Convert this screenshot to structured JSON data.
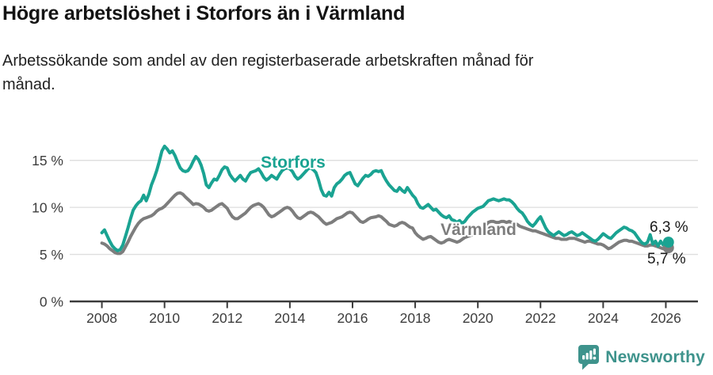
{
  "header": {
    "title": "Högre arbetslöshet i Storfors än i Värmland",
    "subtitle": "Arbetssökande som andel av den registerbaserade arbetskraften månad för månad."
  },
  "footer": {
    "brand": "Newsworthy",
    "logo_icon": "bar-chart-pin-icon"
  },
  "colors": {
    "storfors": "#1aa392",
    "varmland": "#7d7d7d",
    "grid": "#dedede",
    "axis": "#3b3b3b",
    "tick_label": "#3d3d3d",
    "end_label": "#1a1a1a",
    "title": "#141414",
    "brand_teal": "#3e938c",
    "background": "#ffffff"
  },
  "chart_data": {
    "type": "line",
    "title": "Högre arbetslöshet i Storfors än i Värmland",
    "subtitle": "Arbetssökande som andel av den registerbaserade arbetskraften månad för månad.",
    "unit": "%",
    "x_start_year": 2008,
    "x_step_months": 1,
    "xlim": [
      2007.1,
      2027.0
    ],
    "ylim": [
      0,
      18
    ],
    "grid": true,
    "x_ticks": [
      2008,
      2010,
      2012,
      2014,
      2016,
      2018,
      2020,
      2022,
      2024,
      2026
    ],
    "x_tick_labels": [
      "2008",
      "2010",
      "2012",
      "2014",
      "2016",
      "2018",
      "2020",
      "2022",
      "2024",
      "2026"
    ],
    "y_ticks": [
      0,
      5,
      10,
      15
    ],
    "y_tick_labels": [
      "0 %",
      "5 %",
      "10 %",
      "15 %"
    ],
    "legend_position": "inline-labels",
    "series": [
      {
        "name": "Storfors",
        "color": "#1aa392",
        "end_label": "6,3 %",
        "end_value": 6.3,
        "values": [
          7.3,
          7.6,
          7.0,
          6.4,
          5.9,
          5.6,
          5.4,
          5.5,
          6.0,
          6.9,
          7.8,
          8.8,
          9.7,
          10.15,
          10.5,
          10.7,
          11.3,
          10.7,
          11.4,
          12.4,
          13.1,
          13.9,
          14.9,
          16.0,
          16.5,
          16.2,
          15.8,
          16.0,
          15.5,
          14.8,
          14.2,
          13.9,
          13.8,
          13.9,
          14.3,
          14.9,
          15.4,
          15.1,
          14.5,
          13.6,
          12.4,
          12.1,
          12.6,
          13.0,
          12.9,
          13.4,
          14.0,
          14.3,
          14.2,
          13.5,
          13.1,
          12.8,
          13.1,
          13.4,
          13.0,
          12.8,
          13.3,
          13.7,
          13.8,
          13.9,
          14.1,
          13.7,
          13.2,
          12.9,
          13.1,
          13.4,
          13.2,
          13.0,
          13.5,
          13.9,
          14.1,
          14.2,
          14.1,
          13.8,
          13.3,
          13.0,
          13.2,
          13.5,
          13.8,
          14.1,
          14.2,
          14.0,
          13.7,
          12.9,
          11.9,
          11.3,
          11.2,
          11.6,
          11.2,
          12.1,
          12.5,
          12.7,
          13.0,
          13.4,
          13.6,
          13.7,
          13.1,
          12.5,
          12.3,
          12.7,
          13.1,
          13.4,
          13.3,
          13.5,
          13.8,
          13.9,
          13.8,
          13.9,
          13.3,
          12.8,
          12.4,
          12.1,
          11.8,
          11.7,
          12.1,
          11.8,
          11.6,
          12.1,
          11.7,
          11.3,
          11.0,
          10.4,
          10.0,
          9.9,
          10.1,
          10.3,
          10.0,
          9.7,
          9.8,
          9.5,
          9.2,
          9.0,
          8.9,
          9.1,
          8.7,
          8.6,
          8.4,
          8.6,
          8.3,
          8.5,
          8.9,
          9.2,
          9.5,
          9.7,
          9.9,
          10.0,
          10.1,
          10.4,
          10.7,
          10.8,
          10.9,
          10.8,
          10.7,
          10.8,
          10.9,
          10.8,
          10.8,
          10.6,
          10.3,
          9.9,
          9.6,
          9.4,
          9.0,
          8.5,
          8.2,
          8.0,
          8.3,
          8.7,
          9.0,
          8.4,
          7.8,
          7.4,
          7.2,
          7.0,
          7.2,
          7.4,
          7.2,
          7.0,
          7.1,
          7.3,
          7.4,
          7.2,
          7.0,
          7.1,
          7.3,
          7.1,
          6.9,
          6.7,
          6.5,
          6.4,
          6.6,
          6.9,
          7.2,
          7.0,
          6.8,
          6.7,
          7.0,
          7.3,
          7.5,
          7.7,
          7.9,
          7.8,
          7.6,
          7.5,
          7.3,
          6.9,
          6.5,
          6.2,
          6.1,
          6.3,
          7.1,
          6.1,
          6.4,
          5.9,
          6.4,
          6.0,
          6.1,
          6.3
        ]
      },
      {
        "name": "Värmland",
        "color": "#7d7d7d",
        "end_label": "5,7 %",
        "end_value": 5.7,
        "values": [
          6.2,
          6.1,
          5.9,
          5.6,
          5.4,
          5.2,
          5.1,
          5.1,
          5.3,
          5.8,
          6.3,
          6.9,
          7.4,
          7.9,
          8.3,
          8.6,
          8.8,
          8.9,
          9.0,
          9.1,
          9.3,
          9.6,
          9.8,
          9.9,
          10.1,
          10.4,
          10.7,
          11.0,
          11.3,
          11.5,
          11.55,
          11.4,
          11.1,
          10.85,
          10.6,
          10.3,
          10.4,
          10.35,
          10.2,
          10.0,
          9.7,
          9.6,
          9.7,
          9.9,
          10.1,
          10.3,
          10.4,
          10.15,
          9.9,
          9.4,
          9.0,
          8.8,
          8.8,
          9.0,
          9.2,
          9.4,
          9.7,
          10.0,
          10.2,
          10.3,
          10.4,
          10.25,
          10.0,
          9.6,
          9.2,
          9.0,
          9.1,
          9.3,
          9.5,
          9.7,
          9.9,
          10.0,
          9.9,
          9.6,
          9.2,
          8.9,
          8.8,
          9.0,
          9.2,
          9.4,
          9.5,
          9.4,
          9.2,
          9.0,
          8.7,
          8.4,
          8.2,
          8.3,
          8.4,
          8.6,
          8.8,
          8.9,
          9.0,
          9.2,
          9.4,
          9.5,
          9.4,
          9.1,
          8.8,
          8.5,
          8.4,
          8.55,
          8.75,
          8.9,
          8.95,
          9.0,
          9.1,
          9.0,
          8.75,
          8.5,
          8.2,
          8.1,
          8.0,
          8.1,
          8.3,
          8.4,
          8.3,
          8.1,
          7.9,
          7.8,
          7.3,
          7.0,
          6.8,
          6.6,
          6.7,
          6.85,
          6.9,
          6.7,
          6.5,
          6.3,
          6.2,
          6.3,
          6.5,
          6.6,
          6.5,
          6.4,
          6.3,
          6.4,
          6.6,
          6.8,
          6.9,
          7.0,
          7.1,
          7.2,
          7.3,
          7.4,
          7.7,
          8.1,
          8.4,
          8.5,
          8.5,
          8.4,
          8.4,
          8.5,
          8.5,
          8.4,
          8.5,
          8.4,
          8.3,
          8.2,
          8.0,
          7.9,
          7.8,
          7.7,
          7.6,
          7.5,
          7.5,
          7.4,
          7.3,
          7.2,
          7.1,
          7.0,
          6.9,
          6.8,
          6.7,
          6.7,
          6.6,
          6.6,
          6.6,
          6.7,
          6.7,
          6.7,
          6.6,
          6.5,
          6.4,
          6.3,
          6.4,
          6.4,
          6.3,
          6.2,
          6.1,
          6.1,
          6.0,
          5.8,
          5.6,
          5.7,
          5.9,
          6.1,
          6.3,
          6.4,
          6.5,
          6.5,
          6.4,
          6.4,
          6.3,
          6.2,
          6.1,
          6.0,
          5.9,
          5.9,
          6.0,
          6.0,
          5.9,
          5.8,
          5.7,
          5.6,
          5.6,
          5.7
        ]
      }
    ]
  }
}
